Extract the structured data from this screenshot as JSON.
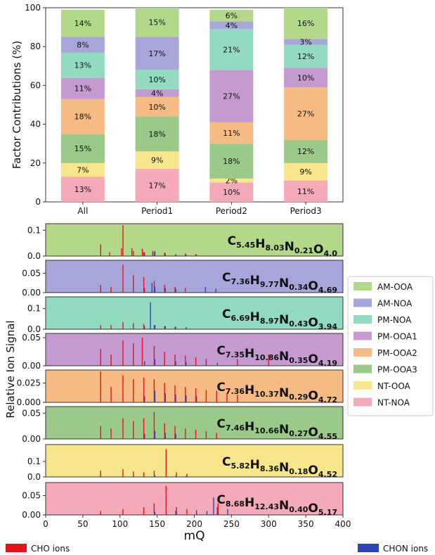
{
  "chart_data": [
    {
      "type": "bar",
      "stacked": true,
      "categories": [
        "All",
        "Period1",
        "Period2",
        "Period3"
      ],
      "ylabel": "Factor Contributions (%)",
      "ylim": [
        0,
        100
      ],
      "yticks": [
        0,
        20,
        40,
        60,
        80,
        100
      ],
      "series": [
        {
          "name": "NT-NOA",
          "color": "#f4aab9",
          "values": [
            13,
            17,
            10,
            11
          ],
          "labels": [
            "13%",
            "17%",
            "10%",
            "11%"
          ]
        },
        {
          "name": "NT-OOA",
          "color": "#f7e68c",
          "values": [
            7,
            9,
            2,
            9
          ],
          "labels": [
            "7%",
            "9%",
            "2%",
            "9%"
          ]
        },
        {
          "name": "PM-OOA3",
          "color": "#9bc98a",
          "values": [
            15,
            18,
            18,
            12
          ],
          "labels": [
            "15%",
            "18%",
            "18%",
            "12%"
          ]
        },
        {
          "name": "PM-OOA2",
          "color": "#f6bb84",
          "values": [
            18,
            10,
            11,
            27
          ],
          "labels": [
            "18%",
            "10%",
            "11%",
            "27%"
          ]
        },
        {
          "name": "PM-OOA1",
          "color": "#c49ad0",
          "values": [
            11,
            4,
            27,
            10
          ],
          "labels": [
            "11%",
            "4%",
            "27%",
            "10%"
          ]
        },
        {
          "name": "PM-NOA",
          "color": "#93dbc0",
          "values": [
            13,
            10,
            21,
            12
          ],
          "labels": [
            "13%",
            "10%",
            "21%",
            "12%"
          ]
        },
        {
          "name": "AM-NOA",
          "color": "#a7a6db",
          "values": [
            8,
            17,
            4,
            3
          ],
          "labels": [
            "8%",
            "17%",
            "4%",
            "3%"
          ]
        },
        {
          "name": "AM-OOA",
          "color": "#b3d88a",
          "values": [
            14,
            15,
            6,
            16
          ],
          "labels": [
            "14%",
            "15%",
            "6%",
            "16%"
          ]
        }
      ]
    },
    {
      "type": "bar",
      "xlabel": "mQ",
      "ylabel": "Relative Ion Signal",
      "xlim": [
        0,
        400
      ],
      "xticks": [
        0,
        50,
        100,
        150,
        200,
        250,
        300,
        350,
        400
      ],
      "ion_legend": [
        {
          "name": "CHO ions",
          "color": "#e5131f"
        },
        {
          "name": "CHON ions",
          "color": "#2f45b5"
        }
      ],
      "panels": [
        {
          "factor": "AM-OOA",
          "color": "#b3d88a",
          "ylim": [
            0,
            0.12
          ],
          "yticks": [
            "0.1",
            "0.0"
          ],
          "formula": [
            [
              "C",
              "5.45"
            ],
            [
              "H",
              "8.03"
            ],
            [
              "N",
              "0.21"
            ],
            [
              "O",
              "4.0"
            ]
          ],
          "cho_peaks": [
            [
              74,
              0.045
            ],
            [
              86,
              0.015
            ],
            [
              102,
              0.03
            ],
            [
              104,
              0.12
            ],
            [
              116,
              0.03
            ],
            [
              118,
              0.02
            ],
            [
              130,
              0.028
            ],
            [
              132,
              0.015
            ],
            [
              144,
              0.02
            ],
            [
              146,
              0.015
            ],
            [
              160,
              0.014
            ],
            [
              188,
              0.01
            ],
            [
              202,
              0.008
            ]
          ],
          "chon_peaks": [
            [
              133,
              0.014
            ],
            [
              147,
              0.02
            ],
            [
              161,
              0.01
            ],
            [
              175,
              0.008
            ],
            [
              189,
              0.006
            ],
            [
              203,
              0.005
            ]
          ]
        },
        {
          "factor": "AM-NOA",
          "color": "#a7a6db",
          "ylim": [
            0,
            0.08
          ],
          "yticks": [
            "0.05",
            "0.00"
          ],
          "formula": [
            [
              "C",
              "7.36"
            ],
            [
              "H",
              "9.77"
            ],
            [
              "N",
              "0.34"
            ],
            [
              "O",
              "4.69"
            ]
          ],
          "cho_peaks": [
            [
              74,
              0.02
            ],
            [
              88,
              0.015
            ],
            [
              104,
              0.072
            ],
            [
              118,
              0.045
            ],
            [
              132,
              0.04
            ],
            [
              146,
              0.03
            ],
            [
              160,
              0.02
            ],
            [
              174,
              0.015
            ],
            [
              188,
              0.012
            ]
          ],
          "chon_peaks": [
            [
              133,
              0.012
            ],
            [
              143,
              0.025
            ],
            [
              147,
              0.015
            ],
            [
              161,
              0.012
            ],
            [
              175,
              0.01
            ],
            [
              215,
              0.014
            ],
            [
              229,
              0.01
            ]
          ]
        },
        {
          "factor": "PM-NOA",
          "color": "#93dbc0",
          "ylim": [
            0,
            0.15
          ],
          "yticks": [
            "0.1",
            "0.0"
          ],
          "formula": [
            [
              "C",
              "6.69"
            ],
            [
              "H",
              "8.97"
            ],
            [
              "N",
              "0.43"
            ],
            [
              "O",
              "3.94"
            ]
          ],
          "cho_peaks": [
            [
              74,
              0.02
            ],
            [
              88,
              0.02
            ],
            [
              104,
              0.035
            ],
            [
              118,
              0.03
            ],
            [
              132,
              0.025
            ],
            [
              146,
              0.02
            ],
            [
              160,
              0.015
            ],
            [
              174,
              0.012
            ]
          ],
          "chon_peaks": [
            [
              133,
              0.015
            ],
            [
              141,
              0.13
            ],
            [
              147,
              0.02
            ],
            [
              161,
              0.015
            ],
            [
              175,
              0.012
            ],
            [
              189,
              0.01
            ]
          ]
        },
        {
          "factor": "PM-OOA1",
          "color": "#c49ad0",
          "ylim": [
            0,
            0.055
          ],
          "yticks": [
            "0.05",
            "0.00"
          ],
          "formula": [
            [
              "C",
              "7.35"
            ],
            [
              "H",
              "10.86"
            ],
            [
              "N",
              "0.35"
            ],
            [
              "O",
              "4.19"
            ]
          ],
          "cho_peaks": [
            [
              74,
              0.03
            ],
            [
              88,
              0.02
            ],
            [
              104,
              0.045
            ],
            [
              118,
              0.04
            ],
            [
              130,
              0.05
            ],
            [
              146,
              0.035
            ],
            [
              160,
              0.025
            ],
            [
              174,
              0.02
            ],
            [
              188,
              0.018
            ],
            [
              202,
              0.015
            ],
            [
              216,
              0.012
            ],
            [
              258,
              0.012
            ],
            [
              300,
              0.02
            ]
          ],
          "chon_peaks": [
            [
              133,
              0.008
            ],
            [
              147,
              0.012
            ],
            [
              175,
              0.008
            ],
            [
              189,
              0.006
            ],
            [
              231,
              0.005
            ]
          ]
        },
        {
          "factor": "PM-OOA2",
          "color": "#f6bb84",
          "ylim": [
            0,
            0.04
          ],
          "yticks": [
            "0.025",
            "0.000"
          ],
          "formula": [
            [
              "C",
              "7.36"
            ],
            [
              "H",
              "10.37"
            ],
            [
              "N",
              "0.29"
            ],
            [
              "O",
              "4.72"
            ]
          ],
          "cho_peaks": [
            [
              74,
              0.04
            ],
            [
              88,
              0.02
            ],
            [
              104,
              0.035
            ],
            [
              118,
              0.03
            ],
            [
              132,
              0.032
            ],
            [
              146,
              0.03
            ],
            [
              160,
              0.025
            ],
            [
              174,
              0.022
            ],
            [
              188,
              0.02
            ],
            [
              202,
              0.018
            ],
            [
              216,
              0.016
            ],
            [
              230,
              0.015
            ],
            [
              244,
              0.012
            ],
            [
              258,
              0.01
            ]
          ],
          "chon_peaks": [
            [
              133,
              0.008
            ],
            [
              147,
              0.015
            ],
            [
              161,
              0.012
            ],
            [
              175,
              0.01
            ],
            [
              189,
              0.009
            ],
            [
              203,
              0.008
            ]
          ]
        },
        {
          "factor": "PM-OOA3",
          "color": "#9bc98a",
          "ylim": [
            0,
            0.06
          ],
          "yticks": [
            "0.05",
            "0.00"
          ],
          "formula": [
            [
              "C",
              "7.46"
            ],
            [
              "H",
              "10.66"
            ],
            [
              "N",
              "0.27"
            ],
            [
              "O",
              "4.55"
            ]
          ],
          "cho_peaks": [
            [
              74,
              0.025
            ],
            [
              88,
              0.02
            ],
            [
              104,
              0.04
            ],
            [
              118,
              0.035
            ],
            [
              132,
              0.04
            ],
            [
              146,
              0.052
            ],
            [
              160,
              0.03
            ],
            [
              174,
              0.025
            ],
            [
              188,
              0.02
            ],
            [
              202,
              0.018
            ],
            [
              216,
              0.015
            ],
            [
              230,
              0.012
            ]
          ],
          "chon_peaks": [
            [
              133,
              0.01
            ],
            [
              147,
              0.015
            ],
            [
              161,
              0.012
            ],
            [
              175,
              0.01
            ]
          ]
        },
        {
          "factor": "NT-OOA",
          "color": "#f7e68c",
          "ylim": [
            0,
            0.2
          ],
          "yticks": [
            "0.1",
            "0.0"
          ],
          "formula": [
            [
              "C",
              "5.82"
            ],
            [
              "H",
              "8.36"
            ],
            [
              "N",
              "0.18"
            ],
            [
              "O",
              "4.52"
            ]
          ],
          "cho_peaks": [
            [
              74,
              0.04
            ],
            [
              104,
              0.05
            ],
            [
              118,
              0.035
            ],
            [
              132,
              0.03
            ],
            [
              146,
              0.04
            ],
            [
              162,
              0.18
            ],
            [
              176,
              0.03
            ],
            [
              190,
              0.02
            ]
          ],
          "chon_peaks": [
            [
              147,
              0.01
            ],
            [
              175,
              0.008
            ],
            [
              189,
              0.006
            ]
          ]
        },
        {
          "factor": "NT-NOA",
          "color": "#f4aab9",
          "ylim": [
            0,
            0.08
          ],
          "yticks": [
            "0.05",
            "0.00"
          ],
          "formula": [
            [
              "C",
              "8.68"
            ],
            [
              "H",
              "12.43"
            ],
            [
              "N",
              "0.40"
            ],
            [
              "O",
              "5.17"
            ]
          ],
          "cho_peaks": [
            [
              74,
              0.01
            ],
            [
              104,
              0.015
            ],
            [
              132,
              0.02
            ],
            [
              146,
              0.03
            ],
            [
              162,
              0.075
            ],
            [
              176,
              0.02
            ],
            [
              190,
              0.015
            ],
            [
              232,
              0.03
            ]
          ],
          "chon_peaks": [
            [
              147,
              0.008
            ],
            [
              175,
              0.01
            ],
            [
              203,
              0.012
            ],
            [
              217,
              0.01
            ],
            [
              226,
              0.045
            ],
            [
              231,
              0.02
            ],
            [
              245,
              0.015
            ]
          ]
        }
      ]
    }
  ]
}
